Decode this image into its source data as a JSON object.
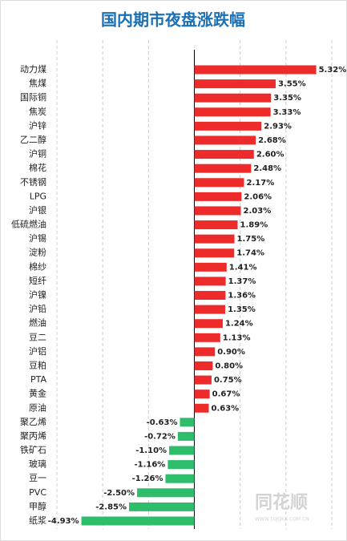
{
  "chart_data": {
    "type": "hbar",
    "title": "国内期市夜盘涨跌幅",
    "categories": [
      "动力煤",
      "焦煤",
      "国际铜",
      "焦炭",
      "沪锌",
      "乙二醇",
      "沪铜",
      "棉花",
      "不锈钢",
      "LPG",
      "沪银",
      "低硫燃油",
      "沪锡",
      "淀粉",
      "棉纱",
      "短纤",
      "沪镍",
      "沪铅",
      "燃油",
      "豆二",
      "沪铝",
      "豆粕",
      "PTA",
      "黄金",
      "原油",
      "聚乙烯",
      "聚丙烯",
      "铁矿石",
      "玻璃",
      "豆一",
      "PVC",
      "甲醇",
      "纸浆"
    ],
    "values": [
      5.32,
      3.55,
      3.35,
      3.33,
      2.93,
      2.68,
      2.6,
      2.48,
      2.17,
      2.06,
      2.03,
      1.89,
      1.75,
      1.74,
      1.41,
      1.37,
      1.36,
      1.35,
      1.24,
      1.13,
      0.9,
      0.8,
      0.75,
      0.67,
      0.63,
      -0.63,
      -0.72,
      -1.1,
      -1.16,
      -1.26,
      -2.5,
      -2.85,
      -4.93
    ],
    "value_labels": [
      "5.32%",
      "3.55%",
      "3.35%",
      "3.33%",
      "2.93%",
      "2.68%",
      "2.60%",
      "2.48%",
      "2.17%",
      "2.06%",
      "2.03%",
      "1.89%",
      "1.75%",
      "1.74%",
      "1.41%",
      "1.37%",
      "1.36%",
      "1.35%",
      "1.24%",
      "1.13%",
      "0.90%",
      "0.80%",
      "0.75%",
      "0.67%",
      "0.63%",
      "-0.63%",
      "-0.72%",
      "-1.10%",
      "-1.16%",
      "-1.26%",
      "-2.50%",
      "-2.85%",
      "-4.93%"
    ],
    "positive_color": "#ee2b2b",
    "negative_color": "#2dbd6b",
    "xlim": [
      -6,
      6
    ],
    "xticks": [
      -6,
      -4,
      -2,
      0,
      2,
      4,
      6
    ],
    "grid": true,
    "watermark": "同花顺",
    "watermark_url": "WWW.10JQKA.COM.CN"
  }
}
